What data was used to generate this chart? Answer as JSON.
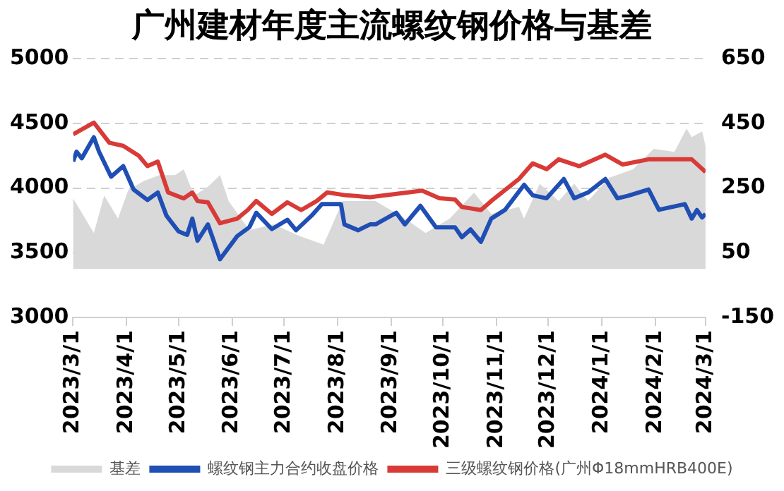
{
  "chart_data": {
    "type": "line",
    "title": "广州建材年度主流螺纹钢价格与基差",
    "xlim": [
      "2023-03-01",
      "2024-03-01"
    ],
    "xticks": [
      {
        "value": "2023-03-01",
        "label": "2023/3/1"
      },
      {
        "value": "2023-04-01",
        "label": "2023/4/1"
      },
      {
        "value": "2023-05-01",
        "label": "2023/5/1"
      },
      {
        "value": "2023-06-01",
        "label": "2023/6/1"
      },
      {
        "value": "2023-07-01",
        "label": "2023/7/1"
      },
      {
        "value": "2023-08-01",
        "label": "2023/8/1"
      },
      {
        "value": "2023-09-01",
        "label": "2023/9/1"
      },
      {
        "value": "2023-10-01",
        "label": "2023/10/1"
      },
      {
        "value": "2023-11-01",
        "label": "2023/11/1"
      },
      {
        "value": "2023-12-01",
        "label": "2023/12/1"
      },
      {
        "value": "2024-01-01",
        "label": "2024/1/1"
      },
      {
        "value": "2024-02-01",
        "label": "2024/2/1"
      },
      {
        "value": "2024-03-01",
        "label": "2024/3/1"
      }
    ],
    "ylim": [
      3000,
      5000
    ],
    "yticks": [
      3000,
      3500,
      4000,
      4500,
      5000
    ],
    "y2lim": [
      -150,
      650
    ],
    "y2ticks": [
      -150,
      50,
      250,
      450,
      650
    ],
    "grid": "y",
    "legend": "bottom",
    "marker": "none",
    "line_style": "solid",
    "series": [
      {
        "name": "基差",
        "type": "area",
        "axis": "y2",
        "color": "#d9d9d9",
        "x": [
          "2023-03-01",
          "2023-03-06",
          "2023-03-13",
          "2023-03-19",
          "2023-03-27",
          "2023-04-02",
          "2023-04-11",
          "2023-04-20",
          "2023-04-29",
          "2023-05-04",
          "2023-05-10",
          "2023-05-18",
          "2023-05-25",
          "2023-05-30",
          "2023-06-11",
          "2023-06-25",
          "2023-07-10",
          "2023-07-24",
          "2023-08-04",
          "2023-08-15",
          "2023-08-23",
          "2023-09-09",
          "2023-09-21",
          "2023-10-05",
          "2023-10-19",
          "2023-10-29",
          "2023-11-14",
          "2023-11-17",
          "2023-11-26",
          "2023-12-07",
          "2023-12-16",
          "2023-12-24",
          "2024-01-05",
          "2024-01-19",
          "2024-01-31",
          "2024-02-12",
          "2024-02-19",
          "2024-02-22",
          "2024-02-28",
          "2024-03-01"
        ],
        "values": [
          218,
          174,
          111,
          227,
          156,
          245,
          272,
          290,
          290,
          308,
          227,
          254,
          290,
          210,
          120,
          138,
          102,
          75,
          210,
          210,
          210,
          156,
          111,
          156,
          236,
          170,
          192,
          156,
          263,
          210,
          263,
          210,
          281,
          308,
          371,
          362,
          434,
          407,
          425,
          380
        ]
      },
      {
        "name": "螺纹钢主力合约收盘价格",
        "type": "line",
        "axis": "y",
        "color": "#1f4eb4",
        "x": [
          "2023-03-01",
          "2023-03-03",
          "2023-03-06",
          "2023-03-13",
          "2023-03-16",
          "2023-03-23",
          "2023-03-30",
          "2023-04-05",
          "2023-04-13",
          "2023-04-19",
          "2023-04-24",
          "2023-05-01",
          "2023-05-06",
          "2023-05-09",
          "2023-05-12",
          "2023-05-18",
          "2023-05-21",
          "2023-05-25",
          "2023-06-04",
          "2023-06-11",
          "2023-06-15",
          "2023-06-24",
          "2023-07-03",
          "2023-07-08",
          "2023-07-17",
          "2023-07-23",
          "2023-08-03",
          "2023-08-05",
          "2023-08-13",
          "2023-08-20",
          "2023-08-23",
          "2023-09-04",
          "2023-09-09",
          "2023-09-18",
          "2023-09-27",
          "2023-10-08",
          "2023-10-12",
          "2023-10-17",
          "2023-10-23",
          "2023-10-29",
          "2023-11-06",
          "2023-11-17",
          "2023-11-22",
          "2023-11-30",
          "2023-12-10",
          "2023-12-16",
          "2023-12-24",
          "2024-01-03",
          "2024-01-10",
          "2024-01-16",
          "2024-01-28",
          "2024-02-03",
          "2024-02-18",
          "2024-02-22",
          "2024-02-25",
          "2024-02-28",
          "2024-03-01"
        ],
        "values": [
          4205,
          4281,
          4230,
          4393,
          4281,
          4088,
          4170,
          3989,
          3908,
          3966,
          3787,
          3665,
          3638,
          3764,
          3593,
          3719,
          3607,
          3450,
          3629,
          3697,
          3809,
          3683,
          3755,
          3674,
          3787,
          3876,
          3876,
          3719,
          3674,
          3720,
          3719,
          3809,
          3719,
          3863,
          3697,
          3697,
          3620,
          3680,
          3584,
          3764,
          3832,
          4025,
          3944,
          3921,
          4070,
          3921,
          3966,
          4070,
          3921,
          3940,
          3989,
          3832,
          3876,
          3764,
          3830,
          3773,
          3800
        ]
      },
      {
        "name": "三级螺纹钢价格(广州Φ18mmHRB400E)",
        "type": "line",
        "axis": "y",
        "color": "#d83b37",
        "x": [
          "2023-03-01",
          "2023-03-13",
          "2023-03-22",
          "2023-03-30",
          "2023-04-08",
          "2023-04-13",
          "2023-04-19",
          "2023-04-25",
          "2023-05-04",
          "2023-05-09",
          "2023-05-12",
          "2023-05-18",
          "2023-05-25",
          "2023-06-04",
          "2023-06-10",
          "2023-06-15",
          "2023-06-24",
          "2023-07-03",
          "2023-07-11",
          "2023-07-20",
          "2023-07-26",
          "2023-08-06",
          "2023-08-20",
          "2023-08-23",
          "2023-09-19",
          "2023-09-29",
          "2023-10-08",
          "2023-10-12",
          "2023-10-23",
          "2023-10-29",
          "2023-11-14",
          "2023-11-22",
          "2023-11-30",
          "2023-12-07",
          "2023-12-19",
          "2024-01-03",
          "2024-01-13",
          "2024-01-28",
          "2024-02-22",
          "2024-03-01"
        ],
        "values": [
          4416,
          4506,
          4350,
          4326,
          4250,
          4170,
          4205,
          3966,
          3920,
          3966,
          3900,
          3890,
          3728,
          3764,
          3830,
          3900,
          3800,
          3890,
          3830,
          3900,
          3966,
          3944,
          3930,
          3935,
          3980,
          3921,
          3912,
          3854,
          3830,
          3900,
          4070,
          4191,
          4146,
          4222,
          4169,
          4258,
          4182,
          4222,
          4222,
          4124
        ]
      }
    ]
  }
}
